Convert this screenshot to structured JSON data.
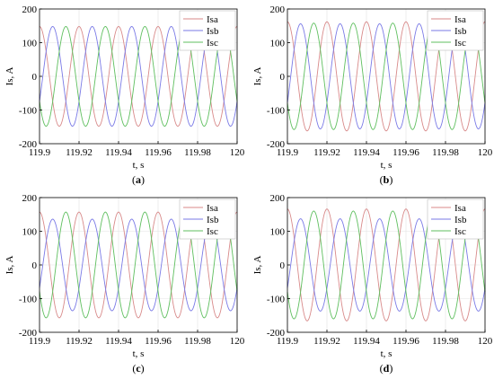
{
  "colors": {
    "Isa": "#d88a8a",
    "Isb": "#7a7ae6",
    "Isc": "#5fbf5f",
    "axis": "#000000",
    "grid": "#e3e3e3"
  },
  "chart_data": [
    {
      "type": "line",
      "panel_label": "(a)",
      "xlabel": "t, s",
      "ylabel": "Is, A",
      "xlim": [
        119.9,
        120
      ],
      "ylim": [
        -200,
        200
      ],
      "xticks": [
        "119.9",
        "119.92",
        "119.94",
        "119.96",
        "119.98",
        "120"
      ],
      "yticks": [
        "200",
        "100",
        "0",
        "-100",
        "-200"
      ],
      "grid": true,
      "legend_position": "top-right",
      "series": [
        {
          "name": "Isa",
          "amplitude": 148,
          "frequency_hz": 50,
          "phase_at_119_9_deg": 90
        },
        {
          "name": "Isb",
          "amplitude": 148,
          "frequency_hz": 50,
          "phase_at_119_9_deg": -30
        },
        {
          "name": "Isc",
          "amplitude": 148,
          "frequency_hz": 50,
          "phase_at_119_9_deg": 210
        }
      ]
    },
    {
      "type": "line",
      "panel_label": "(b)",
      "xlabel": "t, s",
      "ylabel": "Is, A",
      "xlim": [
        119.9,
        120
      ],
      "ylim": [
        -200,
        200
      ],
      "xticks": [
        "119.9",
        "119.92",
        "119.94",
        "119.96",
        "119.98",
        "120"
      ],
      "yticks": [
        "200",
        "100",
        "0",
        "-100",
        "-200"
      ],
      "grid": true,
      "legend_position": "top-right",
      "series": [
        {
          "name": "Isa",
          "amplitude": 162,
          "frequency_hz": 50,
          "phase_at_119_9_deg": 90
        },
        {
          "name": "Isb",
          "amplitude": 156,
          "frequency_hz": 50,
          "phase_at_119_9_deg": -30
        },
        {
          "name": "Isc",
          "amplitude": 158,
          "frequency_hz": 50,
          "phase_at_119_9_deg": 210
        }
      ]
    },
    {
      "type": "line",
      "panel_label": "(c)",
      "xlabel": "t, s",
      "ylabel": "Is, A",
      "xlim": [
        119.9,
        120
      ],
      "ylim": [
        -200,
        200
      ],
      "xticks": [
        "119.9",
        "119.92",
        "119.94",
        "119.96",
        "119.98",
        "120"
      ],
      "yticks": [
        "200",
        "100",
        "0",
        "-100",
        "-200"
      ],
      "grid": true,
      "legend_position": "top-right",
      "series": [
        {
          "name": "Isa",
          "amplitude": 157,
          "frequency_hz": 50,
          "phase_at_119_9_deg": 90
        },
        {
          "name": "Isb",
          "amplitude": 136,
          "frequency_hz": 50,
          "phase_at_119_9_deg": -30
        },
        {
          "name": "Isc",
          "amplitude": 157,
          "frequency_hz": 50,
          "phase_at_119_9_deg": 210
        }
      ]
    },
    {
      "type": "line",
      "panel_label": "(d)",
      "xlabel": "t, s",
      "ylabel": "Is, A",
      "xlim": [
        119.9,
        120
      ],
      "ylim": [
        -200,
        200
      ],
      "xticks": [
        "119.9",
        "119.92",
        "119.94",
        "119.96",
        "119.98",
        "120"
      ],
      "yticks": [
        "200",
        "100",
        "0",
        "-100",
        "-200"
      ],
      "grid": true,
      "legend_position": "top-right",
      "series": [
        {
          "name": "Isa",
          "amplitude": 166,
          "frequency_hz": 50,
          "phase_at_119_9_deg": 90
        },
        {
          "name": "Isb",
          "amplitude": 137,
          "frequency_hz": 50,
          "phase_at_119_9_deg": -30
        },
        {
          "name": "Isc",
          "amplitude": 160,
          "frequency_hz": 50,
          "phase_at_119_9_deg": 210
        }
      ]
    }
  ]
}
